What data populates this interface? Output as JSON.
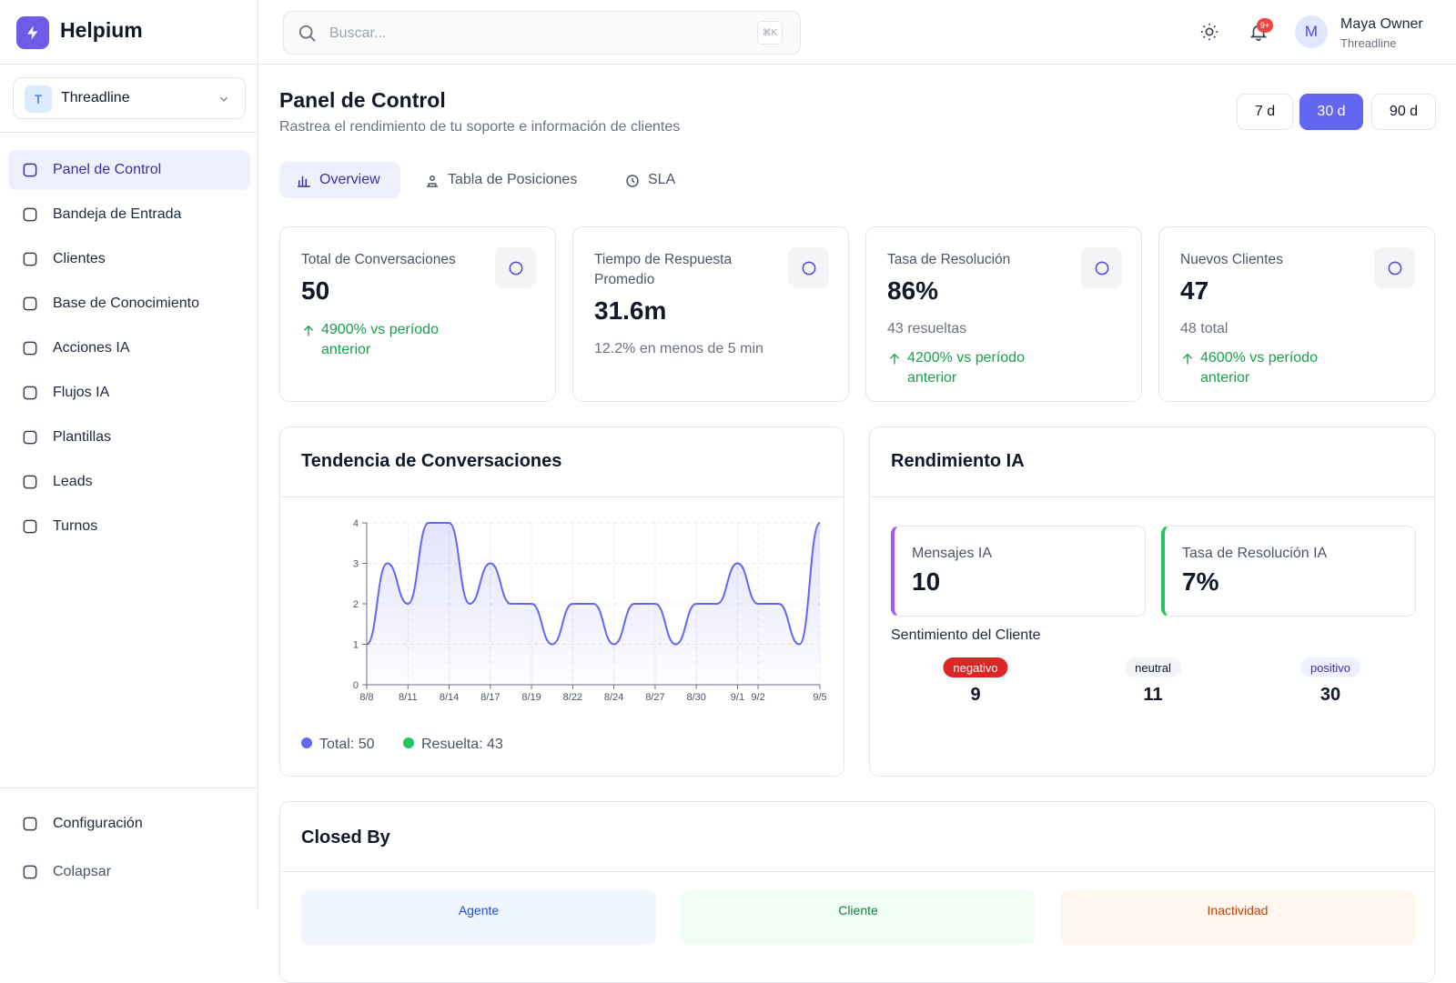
{
  "sidebar": {
    "brand": "Helpium",
    "workspace": {
      "initial": "T",
      "name": "Threadline"
    },
    "nav": [
      "Panel de Control",
      "Bandeja de Entrada",
      "Clientes",
      "Base de Conocimiento",
      "Acciones IA",
      "Flujos IA",
      "Plantillas",
      "Leads",
      "Turnos"
    ],
    "footer": [
      "Configuración",
      "Colapsar"
    ]
  },
  "header": {
    "search_placeholder": "Buscar...",
    "shortcut": "⌘K",
    "notifications": "9+",
    "user": {
      "initial": "M",
      "name": "Maya Owner",
      "org": "Threadline"
    }
  },
  "page": {
    "title": "Panel de Control",
    "subtitle": "Rastrea el rendimiento de tu soporte e información de clientes",
    "ranges": [
      "7 d",
      "30 d",
      "90 d"
    ],
    "tabs": [
      "Overview",
      "Tabla de Posiciones",
      "SLA"
    ]
  },
  "stats": [
    {
      "label": "Total de Conversaciones",
      "value": "50",
      "change": "4900% vs período anterior"
    },
    {
      "label": "Tiempo de Respuesta Promedio",
      "value": "31.6m",
      "note": "12.2% en menos de 5 min"
    },
    {
      "label": "Tasa de Resolución",
      "value": "86%",
      "note": "43 resueltas",
      "change": "4200% vs período anterior"
    },
    {
      "label": "Nuevos Clientes",
      "value": "47",
      "note": "48 total",
      "change": "4600% vs período anterior"
    }
  ],
  "chart_data": {
    "type": "line",
    "title": "Tendencia de Conversaciones",
    "categories": [
      "8/8",
      null,
      "8/11",
      null,
      "8/14",
      null,
      "8/17",
      null,
      "8/19",
      null,
      "8/22",
      null,
      "8/24",
      null,
      "8/27",
      null,
      "8/30",
      null,
      "9/1",
      "9/2",
      null,
      null,
      "9/5"
    ],
    "series": [
      {
        "color": "#6366f1",
        "values": [
          1,
          3,
          2,
          4,
          4,
          2,
          3,
          2,
          2,
          1,
          2,
          2,
          1,
          2,
          2,
          1,
          2,
          2,
          3,
          2,
          2,
          1,
          4
        ]
      }
    ],
    "legend": [
      {
        "label": "Total: 50",
        "color": "#6366f1"
      },
      {
        "label": "Resuelta: 43",
        "color": "#22c55e"
      }
    ],
    "ylim": [
      0,
      4
    ],
    "yticks": [
      0,
      1,
      2,
      3,
      4
    ],
    "grid": true
  },
  "ai_performance": {
    "title": "Rendimiento IA",
    "metrics": [
      {
        "label": "Mensajes IA",
        "value": "10",
        "color": "#a855f7"
      },
      {
        "label": "Tasa de Resolución IA",
        "value": "7%",
        "color": "#22c55e"
      }
    ],
    "sentiment": {
      "title": "Sentimiento del Cliente",
      "items": [
        {
          "label": "negativo",
          "value": "9"
        },
        {
          "label": "neutral",
          "value": "11"
        },
        {
          "label": "positivo",
          "value": "30"
        }
      ]
    }
  },
  "closed_by": {
    "title": "Closed By",
    "items": [
      "Agente",
      "Cliente",
      "Inactividad"
    ]
  }
}
